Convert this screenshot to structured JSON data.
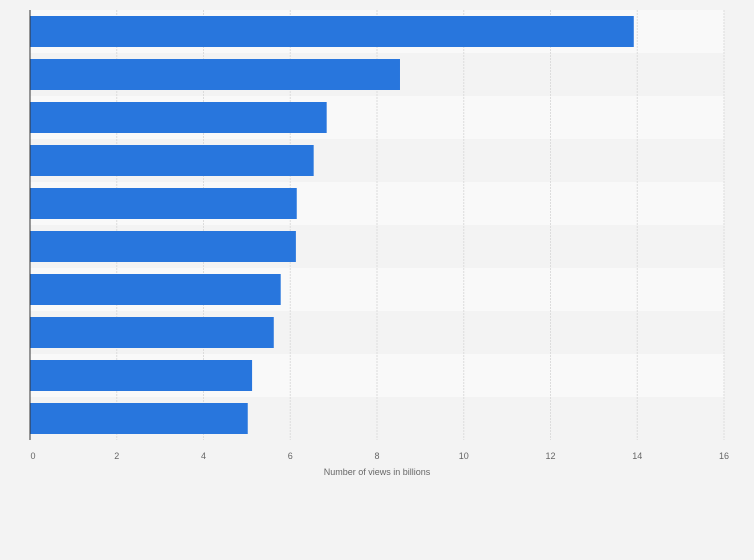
{
  "chart_data": {
    "type": "bar",
    "orientation": "horizontal",
    "title": "",
    "xlabel": "Number of views in billions",
    "ylabel": "",
    "categories": [
      "",
      "",
      "",
      "",
      "",
      "",
      "",
      "",
      "",
      ""
    ],
    "values": [
      13.92,
      8.53,
      6.84,
      6.54,
      6.15,
      6.13,
      5.78,
      5.62,
      5.12,
      5.02
    ],
    "xlim": [
      0,
      16
    ],
    "xticks": [
      "0",
      "2",
      "4",
      "6",
      "8",
      "10",
      "12",
      "14",
      "16"
    ],
    "grid": true,
    "bar_color": "#2876dd"
  }
}
